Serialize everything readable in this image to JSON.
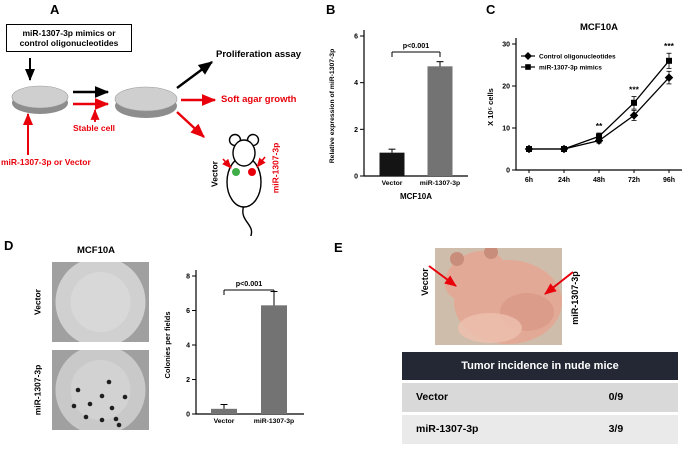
{
  "labels": {
    "a": "A",
    "b": "B",
    "c": "C",
    "d": "D",
    "e": "E"
  },
  "panel_a": {
    "box_line1": "miR-1307-3p mimics or",
    "box_line2": "control oligonucleotides",
    "proliferation_label": "Proliferation assay",
    "soft_agar_label": "Soft agar growth",
    "stable_cell_label": "Stable cell",
    "transfect_label": "miR-1307-3p or Vector",
    "mouse_left_label": "Vector",
    "mouse_right_label": "miR-1307-3p",
    "accent_red": "#e8000b",
    "dot_green": "#3fae49",
    "dot_red": "#e8000b"
  },
  "panel_d": {
    "title": "MCF10A",
    "image_labels": [
      "Vector",
      "miR-1307-3p"
    ]
  },
  "panel_e": {
    "mouse_labels": [
      "Vector",
      "miR-1307-3p"
    ],
    "table": {
      "header": "Tumor incidence in nude mice",
      "rows": [
        [
          "Vector",
          "0/9"
        ],
        [
          "miR-1307-3p",
          "3/9"
        ]
      ],
      "header_bg": "#232834",
      "header_color": "#ffffff",
      "row_bgs": [
        "#d9d9d9",
        "#eaeaea"
      ]
    }
  },
  "chart_data": [
    {
      "id": "panel_b",
      "type": "bar",
      "title": "",
      "categories": [
        "Vector",
        "miR-1307-3p"
      ],
      "values": [
        1.0,
        4.7
      ],
      "errors": [
        0.15,
        0.2
      ],
      "bar_colors": [
        "#141414",
        "#737373"
      ],
      "ylabel": "Relative expression of miR-1307-3p",
      "xlabel": "MCF10A",
      "ylim": [
        0,
        6
      ],
      "yticks": [
        0,
        2,
        4,
        6
      ],
      "annotation": "p<0.001",
      "grid": false
    },
    {
      "id": "panel_c",
      "type": "line",
      "title": "MCF10A",
      "x": [
        "6h",
        "24h",
        "48h",
        "72h",
        "96h"
      ],
      "series": [
        {
          "name": "Control oligonucleotides",
          "marker": "diamond",
          "values": [
            5,
            5,
            7,
            13,
            22
          ],
          "errors": [
            0.4,
            0.4,
            0.6,
            1.2,
            1.5
          ]
        },
        {
          "name": "miR-1307-3p mimics",
          "marker": "square",
          "values": [
            5,
            5,
            8,
            16,
            26
          ],
          "errors": [
            0.4,
            0.4,
            0.8,
            1.5,
            1.8
          ]
        }
      ],
      "ylabel": "X 10⁵ cells",
      "ylim": [
        0,
        30
      ],
      "yticks": [
        0,
        10,
        20,
        30
      ],
      "annotations": [
        {
          "x": "48h",
          "text": "**"
        },
        {
          "x": "72h",
          "text": "***"
        },
        {
          "x": "96h",
          "text": "***"
        }
      ],
      "legend_position": "top-left",
      "grid": false
    },
    {
      "id": "panel_d",
      "type": "bar",
      "title": "",
      "categories": [
        "Vector",
        "miR-1307-3p"
      ],
      "values": [
        0.3,
        6.3
      ],
      "errors": [
        0.25,
        0.8
      ],
      "bar_colors": [
        "#737373",
        "#737373"
      ],
      "ylabel": "Colonies per fields",
      "xlabel": "",
      "ylim": [
        0,
        8
      ],
      "yticks": [
        0,
        2,
        4,
        6,
        8
      ],
      "annotation": "p<0.001",
      "grid": false
    }
  ]
}
